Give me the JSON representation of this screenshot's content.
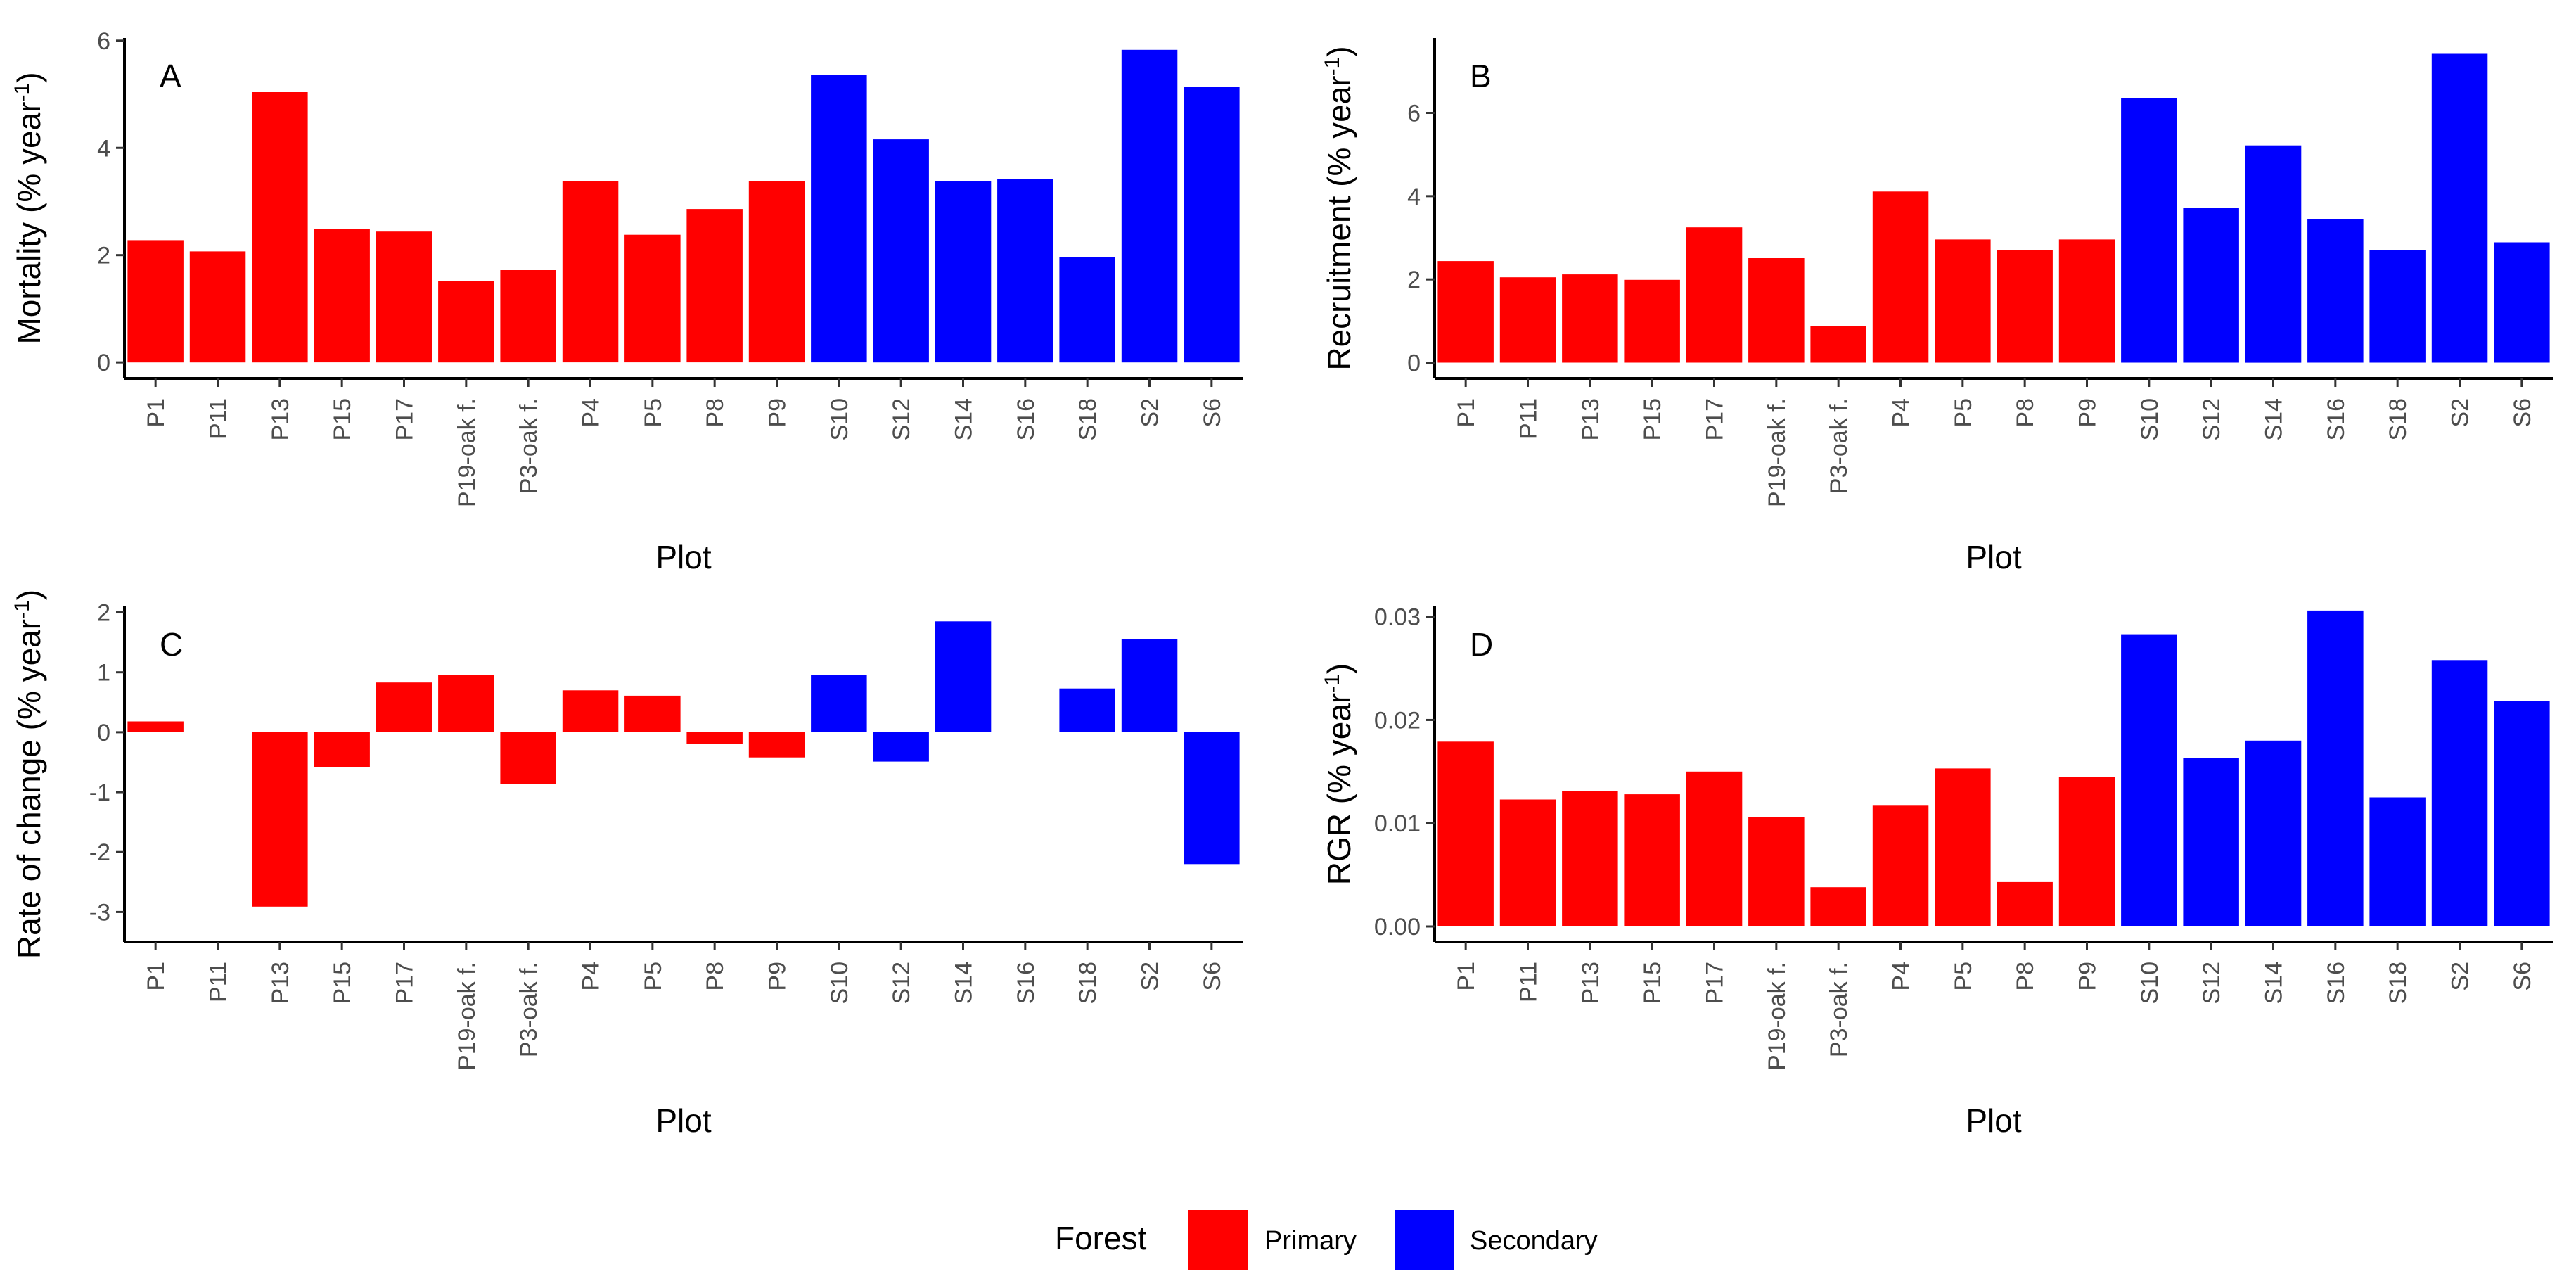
{
  "figure_title": "",
  "colors": {
    "Primary": "#ff0000",
    "Secondary": "#0000ff",
    "axis": "#000000",
    "tick_text": "#4d4d4d"
  },
  "chart_data": [
    {
      "type": "bar",
      "panel": "A",
      "title": "",
      "xlabel": "Plot",
      "ylabel": {
        "pre": "Mortality (% year",
        "sup": "-1",
        "post": ")"
      },
      "ylim": [
        -0.3,
        6.05
      ],
      "yticks": [
        0,
        2,
        4,
        6
      ],
      "ytick_labels": [
        "0",
        "2",
        "4",
        "6"
      ],
      "categories": [
        "P1",
        "P11",
        "P13",
        "P15",
        "P17",
        "P19-oak f.",
        "P3-oak f.",
        "P4",
        "P5",
        "P8",
        "P9",
        "S10",
        "S12",
        "S14",
        "S16",
        "S18",
        "S2",
        "S6"
      ],
      "groups": [
        "Primary",
        "Primary",
        "Primary",
        "Primary",
        "Primary",
        "Primary",
        "Primary",
        "Primary",
        "Primary",
        "Primary",
        "Primary",
        "Secondary",
        "Secondary",
        "Secondary",
        "Secondary",
        "Secondary",
        "Secondary",
        "Secondary"
      ],
      "values": [
        2.28,
        2.07,
        5.04,
        2.49,
        2.44,
        1.52,
        1.72,
        3.38,
        2.38,
        2.86,
        3.38,
        5.36,
        4.16,
        3.38,
        3.42,
        1.97,
        5.83,
        5.14
      ]
    },
    {
      "type": "bar",
      "panel": "B",
      "title": "",
      "xlabel": "Plot",
      "ylabel": {
        "pre": "Recruitment (% year",
        "sup": "-1",
        "post": ")"
      },
      "ylim": [
        -0.38,
        7.8
      ],
      "yticks": [
        0,
        2,
        4,
        6
      ],
      "ytick_labels": [
        "0",
        "2",
        "4",
        "6"
      ],
      "categories": [
        "P1",
        "P11",
        "P13",
        "P15",
        "P17",
        "P19-oak f.",
        "P3-oak f.",
        "P4",
        "P5",
        "P8",
        "P9",
        "S10",
        "S12",
        "S14",
        "S16",
        "S18",
        "S2",
        "S6"
      ],
      "groups": [
        "Primary",
        "Primary",
        "Primary",
        "Primary",
        "Primary",
        "Primary",
        "Primary",
        "Primary",
        "Primary",
        "Primary",
        "Primary",
        "Secondary",
        "Secondary",
        "Secondary",
        "Secondary",
        "Secondary",
        "Secondary",
        "Secondary"
      ],
      "values": [
        2.44,
        2.05,
        2.12,
        1.99,
        3.25,
        2.51,
        0.88,
        4.11,
        2.96,
        2.71,
        2.96,
        6.35,
        3.72,
        5.22,
        3.45,
        2.71,
        7.42,
        2.89
      ]
    },
    {
      "type": "bar",
      "panel": "C",
      "title": "",
      "xlabel": "Plot",
      "ylabel": {
        "pre": "Rate of change (% year",
        "sup": "-1",
        "post": ")"
      },
      "ylim": [
        -3.5,
        2.1
      ],
      "yticks": [
        -3,
        -2,
        -1,
        0,
        1,
        2
      ],
      "ytick_labels": [
        "-3",
        "-2",
        "-1",
        "0",
        "1",
        "2"
      ],
      "categories": [
        "P1",
        "P11",
        "P13",
        "P15",
        "P17",
        "P19-oak f.",
        "P3-oak f.",
        "P4",
        "P5",
        "P8",
        "P9",
        "S10",
        "S12",
        "S14",
        "S16",
        "S18",
        "S2",
        "S6"
      ],
      "groups": [
        "Primary",
        "Primary",
        "Primary",
        "Primary",
        "Primary",
        "Primary",
        "Primary",
        "Primary",
        "Primary",
        "Primary",
        "Primary",
        "Secondary",
        "Secondary",
        "Secondary",
        "Secondary",
        "Secondary",
        "Secondary",
        "Secondary"
      ],
      "values": [
        0.18,
        0,
        -2.91,
        -0.58,
        0.83,
        0.95,
        -0.87,
        0.7,
        0.61,
        -0.2,
        -0.42,
        0.95,
        -0.49,
        1.85,
        0,
        0.73,
        1.55,
        -2.2
      ]
    },
    {
      "type": "bar",
      "panel": "D",
      "title": "",
      "xlabel": "Plot",
      "ylabel": {
        "pre": "RGR (% year",
        "sup": "-1",
        "post": ")"
      },
      "ylim": [
        -0.0015,
        0.031
      ],
      "yticks": [
        0,
        0.01,
        0.02,
        0.03
      ],
      "ytick_labels": [
        "0.00",
        "0.01",
        "0.02",
        "0.03"
      ],
      "categories": [
        "P1",
        "P11",
        "P13",
        "P15",
        "P17",
        "P19-oak f.",
        "P3-oak f.",
        "P4",
        "P5",
        "P8",
        "P9",
        "S10",
        "S12",
        "S14",
        "S16",
        "S18",
        "S2",
        "S6"
      ],
      "groups": [
        "Primary",
        "Primary",
        "Primary",
        "Primary",
        "Primary",
        "Primary",
        "Primary",
        "Primary",
        "Primary",
        "Primary",
        "Primary",
        "Secondary",
        "Secondary",
        "Secondary",
        "Secondary",
        "Secondary",
        "Secondary",
        "Secondary"
      ],
      "values": [
        0.0179,
        0.0123,
        0.0131,
        0.0128,
        0.015,
        0.0106,
        0.0038,
        0.0117,
        0.0153,
        0.0043,
        0.0145,
        0.0283,
        0.0163,
        0.018,
        0.0306,
        0.0125,
        0.0258,
        0.0218
      ]
    }
  ],
  "legend": {
    "title": "Forest",
    "items": [
      {
        "label": "Primary",
        "color": "#ff0000"
      },
      {
        "label": "Secondary",
        "color": "#0000ff"
      }
    ],
    "position": "bottom"
  }
}
